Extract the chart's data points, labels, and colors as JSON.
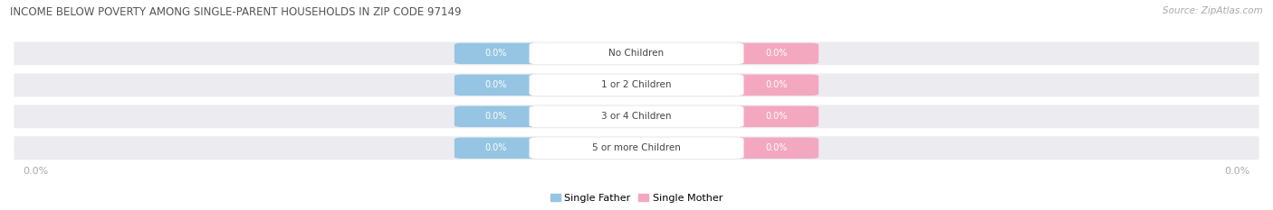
{
  "title": "INCOME BELOW POVERTY AMONG SINGLE-PARENT HOUSEHOLDS IN ZIP CODE 97149",
  "source": "Source: ZipAtlas.com",
  "categories": [
    "No Children",
    "1 or 2 Children",
    "3 or 4 Children",
    "5 or more Children"
  ],
  "father_values": [
    0.0,
    0.0,
    0.0,
    0.0
  ],
  "mother_values": [
    0.0,
    0.0,
    0.0,
    0.0
  ],
  "father_color": "#95c5e2",
  "mother_color": "#f4a8c0",
  "label_fg_father": "#ffffff",
  "label_fg_mother": "#ffffff",
  "category_text_color": "#444444",
  "background_color": "#ffffff",
  "row_bg_color": "#ebebf0",
  "row_divider_color": "#ffffff",
  "title_color": "#555555",
  "axis_label_color": "#aaaaaa",
  "legend_father": "Single Father",
  "legend_mother": "Single Mother",
  "figsize": [
    14.06,
    2.33
  ],
  "dpi": 100
}
